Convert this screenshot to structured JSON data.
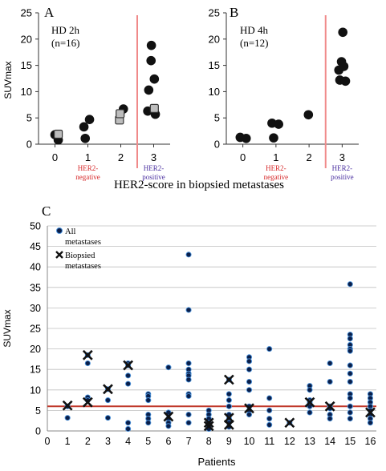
{
  "chart_data": [
    {
      "type": "scatter",
      "panel_letter": "A",
      "annotation_line1": "HD 2h",
      "annotation_line2": "(n=16)",
      "ylabel": "SUVmax",
      "ylim": [
        0,
        25
      ],
      "yticks": [
        "0",
        "5",
        "10",
        "15",
        "20",
        "25"
      ],
      "xticks": [
        "0",
        "1",
        "2",
        "3"
      ],
      "xlim": [
        -0.5,
        3.5
      ],
      "divider_x": 2.5,
      "negative_label": [
        "HER2-",
        "negative"
      ],
      "positive_label": [
        "HER2-",
        "positive"
      ],
      "series": [
        {
          "marker": "dark-circle",
          "points": [
            [
              0,
              1.8
            ],
            [
              0.1,
              0.8
            ],
            [
              0.88,
              3.3
            ],
            [
              0.92,
              1.1
            ],
            [
              1.05,
              4.7
            ],
            [
              2.08,
              6.7
            ],
            [
              2.82,
              6.3
            ],
            [
              2.85,
              10.3
            ],
            [
              2.92,
              15.9
            ],
            [
              2.93,
              18.8
            ],
            [
              3.02,
              12.4
            ],
            [
              3.05,
              5.7
            ]
          ]
        },
        {
          "marker": "grey-square",
          "points": [
            [
              0.1,
              1.9
            ],
            [
              1.96,
              4.6
            ],
            [
              1.98,
              5.8
            ],
            [
              3.02,
              6.8
            ]
          ]
        }
      ]
    },
    {
      "type": "scatter",
      "panel_letter": "B",
      "annotation_line1": "HD 4h",
      "annotation_line2": "(n=12)",
      "ylim": [
        0,
        25
      ],
      "yticks": [
        "0",
        "5",
        "10",
        "15",
        "20",
        "25"
      ],
      "xticks": [
        "0",
        "1",
        "2",
        "3"
      ],
      "xlim": [
        -0.5,
        3.5
      ],
      "divider_x": 2.5,
      "negative_label": [
        "HER2-",
        "negative"
      ],
      "positive_label": [
        "HER2-",
        "positive"
      ],
      "series": [
        {
          "marker": "dark-circle",
          "points": [
            [
              -0.08,
              1.3
            ],
            [
              0.1,
              1.1
            ],
            [
              0.88,
              4.0
            ],
            [
              0.93,
              1.2
            ],
            [
              1.08,
              3.8
            ],
            [
              1.98,
              5.6
            ],
            [
              2.9,
              14.1
            ],
            [
              2.93,
              12.2
            ],
            [
              2.98,
              15.7
            ],
            [
              3.02,
              21.3
            ],
            [
              3.05,
              14.8
            ],
            [
              3.1,
              12.0
            ]
          ]
        }
      ]
    },
    {
      "type": "scatter",
      "panel_letter": "C",
      "ylabel": "SUVmax",
      "xlabel": "Patients",
      "ylim": [
        0,
        50
      ],
      "yticks": [
        "0",
        "5",
        "10",
        "15",
        "20",
        "25",
        "30",
        "35",
        "40",
        "45",
        "50"
      ],
      "xticks": [
        "0",
        "1",
        "2",
        "3",
        "4",
        "5",
        "6",
        "7",
        "8",
        "9",
        "10",
        "11",
        "12",
        "13",
        "14",
        "15",
        "16"
      ],
      "xlim": [
        0,
        16.3
      ],
      "reference_line_y": 6,
      "grid": "horizontal",
      "legend_position": "top-left",
      "series": [
        {
          "name": "All metastases",
          "marker": "dot",
          "points": [
            [
              1,
              6
            ],
            [
              1,
              3.2
            ],
            [
              2,
              18.5
            ],
            [
              2,
              16.5
            ],
            [
              2,
              8.2
            ],
            [
              2,
              7.5
            ],
            [
              3,
              10.2
            ],
            [
              3,
              7.5
            ],
            [
              3,
              3.2
            ],
            [
              4,
              16.5
            ],
            [
              4,
              16
            ],
            [
              4,
              13.5
            ],
            [
              4,
              11.5
            ],
            [
              4,
              2
            ],
            [
              4,
              0.5
            ],
            [
              5,
              9
            ],
            [
              5,
              8.5
            ],
            [
              5,
              7.5
            ],
            [
              5,
              4
            ],
            [
              5,
              3
            ],
            [
              5,
              2
            ],
            [
              6,
              15.5
            ],
            [
              6,
              4.5
            ],
            [
              6,
              3
            ],
            [
              6,
              2
            ],
            [
              6,
              1.2
            ],
            [
              7,
              43
            ],
            [
              7,
              29.5
            ],
            [
              7,
              16.5
            ],
            [
              7,
              15
            ],
            [
              7,
              14
            ],
            [
              7,
              13.5
            ],
            [
              7,
              12.5
            ],
            [
              7,
              9
            ],
            [
              7,
              8.5
            ],
            [
              7,
              4
            ],
            [
              7,
              2
            ],
            [
              8,
              5
            ],
            [
              8,
              4
            ],
            [
              8,
              3
            ],
            [
              8,
              2
            ],
            [
              8,
              1
            ],
            [
              8,
              0.5
            ],
            [
              9,
              12.5
            ],
            [
              9,
              9
            ],
            [
              9,
              7.5
            ],
            [
              9,
              6
            ],
            [
              9,
              4
            ],
            [
              9,
              3
            ],
            [
              9,
              2
            ],
            [
              9,
              1
            ],
            [
              10,
              18
            ],
            [
              10,
              17
            ],
            [
              10,
              15
            ],
            [
              10,
              12
            ],
            [
              10,
              10
            ],
            [
              10,
              6
            ],
            [
              10,
              5
            ],
            [
              10,
              4
            ],
            [
              11,
              20
            ],
            [
              11,
              8
            ],
            [
              11,
              5
            ],
            [
              11,
              3
            ],
            [
              11,
              1.5
            ],
            [
              12,
              2
            ],
            [
              13,
              11
            ],
            [
              13,
              10
            ],
            [
              13,
              7.5
            ],
            [
              13,
              7
            ],
            [
              13,
              6
            ],
            [
              13,
              4.5
            ],
            [
              14,
              16.5
            ],
            [
              14,
              12
            ],
            [
              14,
              6
            ],
            [
              14,
              5.5
            ],
            [
              14,
              4
            ],
            [
              14,
              3
            ],
            [
              15,
              35.8
            ],
            [
              15,
              23.5
            ],
            [
              15,
              22.5
            ],
            [
              15,
              21
            ],
            [
              15,
              20
            ],
            [
              15,
              19.5
            ],
            [
              15,
              16
            ],
            [
              15,
              14
            ],
            [
              15,
              12
            ],
            [
              15,
              9
            ],
            [
              15,
              8
            ],
            [
              15,
              6
            ],
            [
              15,
              4.5
            ],
            [
              15,
              3
            ],
            [
              16,
              9
            ],
            [
              16,
              8
            ],
            [
              16,
              7
            ],
            [
              16,
              6
            ],
            [
              16,
              5
            ],
            [
              16,
              4
            ],
            [
              16,
              3
            ],
            [
              16,
              2
            ]
          ]
        },
        {
          "name": "Biopsied metastases",
          "marker": "cross",
          "points": [
            [
              1,
              6.2
            ],
            [
              2,
              18.5
            ],
            [
              2,
              7
            ],
            [
              3,
              10.2
            ],
            [
              4,
              16
            ],
            [
              6,
              3.5
            ],
            [
              8,
              1.2
            ],
            [
              8,
              2
            ],
            [
              9,
              12.5
            ],
            [
              9,
              3.2
            ],
            [
              9,
              1.5
            ],
            [
              10,
              5.5
            ],
            [
              12,
              2
            ],
            [
              13,
              7
            ],
            [
              14,
              6
            ],
            [
              16,
              4.5
            ]
          ]
        }
      ],
      "legend": [
        {
          "marker": "dot",
          "line1": "All",
          "line2": "metastases"
        },
        {
          "marker": "cross",
          "line1": "Biopsied",
          "line2": "metastases"
        }
      ]
    }
  ],
  "shared_xlabel_ab": "HER2-score in biopsied metastases",
  "colors": {
    "dark_circle": "#111111",
    "grey_square": "#bdbdbd",
    "divider": "#f08a8a",
    "negative_text": "#d62728",
    "positive_text": "#4a2fa0",
    "ref_line": "#c0392b",
    "dot_fill": "#0a1f4a",
    "dot_edge": "#4a90d9",
    "grid": "#bfbfbf"
  }
}
